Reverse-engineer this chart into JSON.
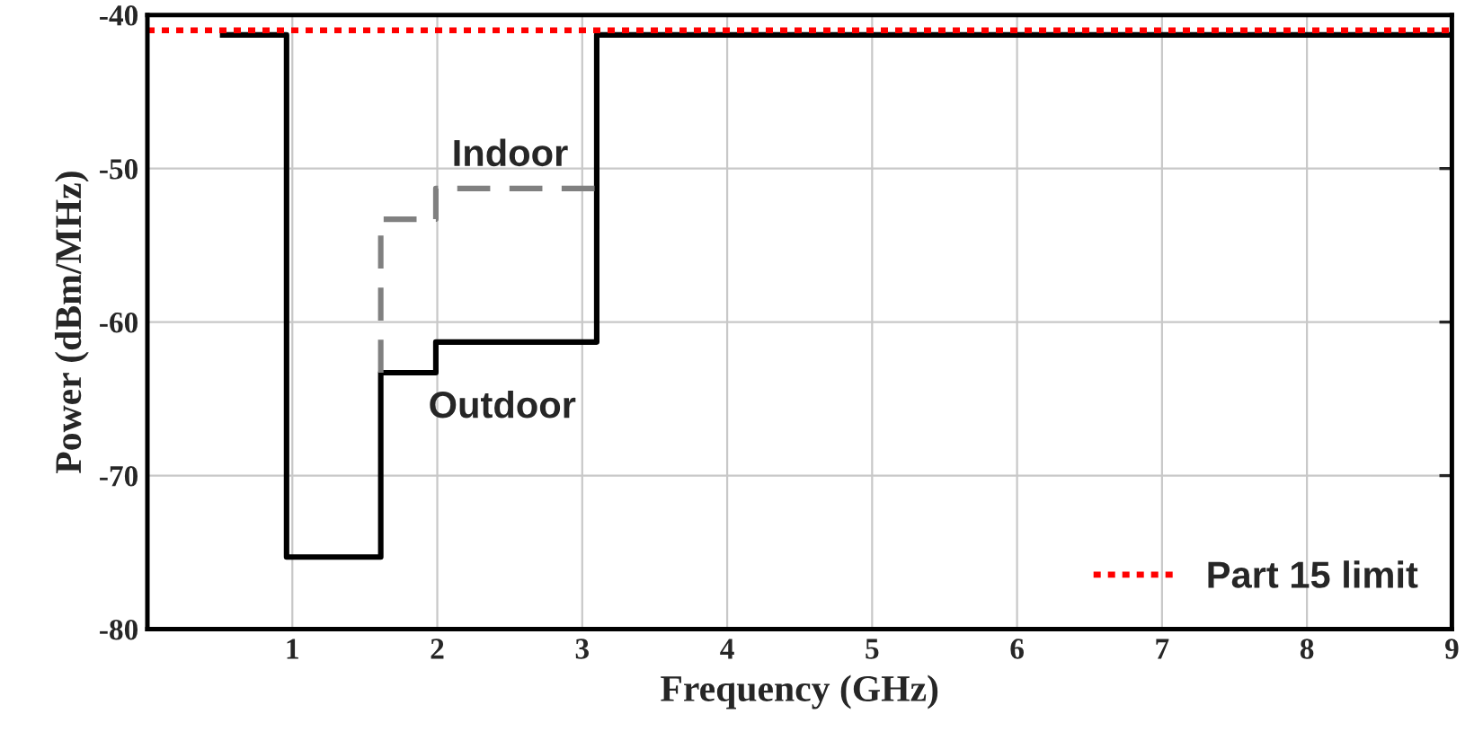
{
  "chart_data": {
    "type": "line",
    "xlabel": "Frequency (GHz)",
    "ylabel": "Power (dBm/MHz)",
    "xlim": [
      0,
      9
    ],
    "xticks": [
      1,
      2,
      3,
      4,
      5,
      6,
      7,
      8,
      9
    ],
    "ylim": [
      -80,
      -40
    ],
    "yticks": [
      -80,
      -70,
      -60,
      -50,
      -40
    ],
    "grid": true,
    "legend": "bottom right",
    "series": [
      {
        "color": "#000000",
        "line_style": "solid",
        "x": [
          0.5,
          0.96,
          0.96,
          1.61,
          1.61,
          1.99,
          1.99,
          3.1,
          3.1,
          9
        ],
        "values": [
          -41.3,
          -41.3,
          -75.3,
          -75.3,
          -63.3,
          -63.3,
          -61.3,
          -61.3,
          -41.3,
          -41.3
        ]
      },
      {
        "color": "#808080",
        "line_style": "dashed",
        "x": [
          1.61,
          1.61,
          1.99,
          1.99,
          3.1
        ],
        "values": [
          -63.3,
          -53.3,
          -53.3,
          -51.3,
          -51.3
        ]
      },
      {
        "name": "Part 15 limit",
        "color": "#ff0000",
        "line_style": "dotted",
        "x": [
          0,
          9
        ],
        "values": [
          -41,
          -41
        ]
      }
    ],
    "annotations": [
      "Indoor",
      "Outdoor"
    ]
  }
}
